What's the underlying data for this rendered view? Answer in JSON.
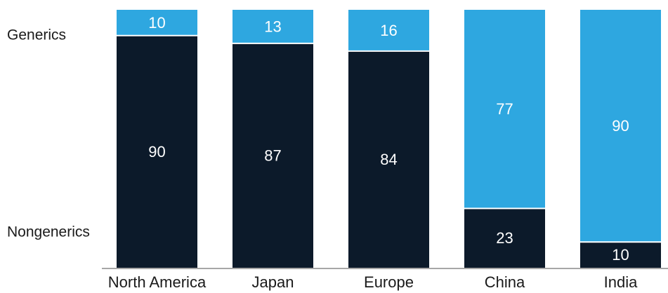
{
  "chart_data": {
    "type": "bar",
    "stacked": true,
    "percent_stacked": true,
    "categories": [
      "North America",
      "Japan",
      "Europe",
      "China",
      "India"
    ],
    "series": [
      {
        "name": "Nongenerics",
        "values": [
          90,
          87,
          84,
          23,
          10
        ],
        "color": "#0c1a2a"
      },
      {
        "name": "Generics",
        "values": [
          10,
          13,
          16,
          77,
          90
        ],
        "color": "#2ea7e0"
      }
    ],
    "ylim": [
      0,
      100
    ],
    "grid": false,
    "legend": "left"
  },
  "colors": {
    "nongenerics": "#0c1a2a",
    "generics": "#2ea7e0",
    "axis": "#8a8a8a",
    "segment_divider": "#ffffff",
    "segment_text": "#ffffff",
    "category_text": "#1a1a1a"
  }
}
